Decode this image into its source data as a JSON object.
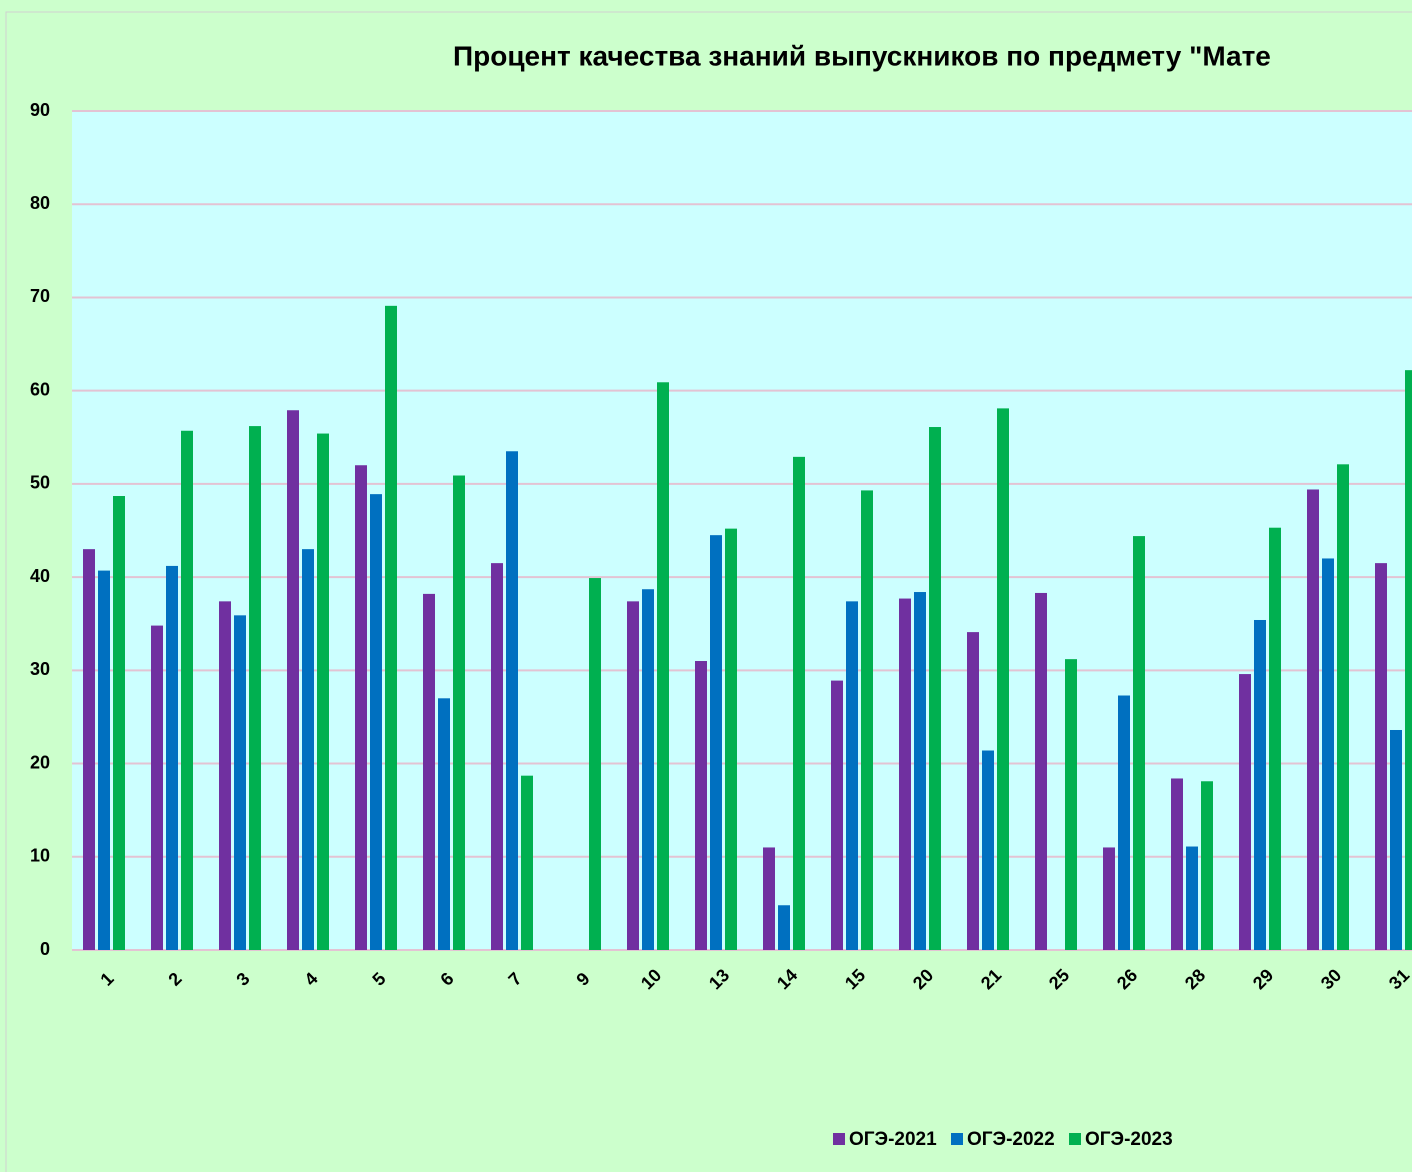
{
  "chart_data": {
    "type": "bar",
    "title": "Процент качества знаний выпускников по предмету  \"Мате",
    "categories": [
      "1",
      "2",
      "3",
      "4",
      "5",
      "6",
      "7",
      "9",
      "10",
      "13",
      "14",
      "15",
      "20",
      "21",
      "25",
      "26",
      "28",
      "29",
      "30",
      "31"
    ],
    "series": [
      {
        "name": "ОГЭ-2021",
        "color": "#7030a0",
        "values": [
          43,
          34.8,
          37.4,
          57.9,
          52,
          38.2,
          41.5,
          null,
          37.4,
          31,
          11,
          28.9,
          37.7,
          34.1,
          38.3,
          11,
          18.4,
          29.6,
          49.4,
          41.5
        ]
      },
      {
        "name": "ОГЭ-2022",
        "color": "#0070c0",
        "values": [
          40.7,
          41.2,
          35.9,
          43,
          48.9,
          27,
          53.5,
          null,
          38.7,
          44.5,
          4.8,
          37.4,
          38.4,
          21.4,
          null,
          27.3,
          11.1,
          35.4,
          42,
          23.6
        ]
      },
      {
        "name": "ОГЭ-2023",
        "color": "#00b050",
        "values": [
          48.7,
          55.7,
          56.2,
          55.4,
          69.1,
          50.9,
          18.7,
          39.9,
          60.9,
          45.2,
          52.9,
          49.3,
          56.1,
          58.1,
          31.2,
          44.4,
          18.1,
          45.3,
          52.1,
          62.2
        ]
      }
    ],
    "ylim": [
      0,
      90
    ],
    "yticks": [
      0,
      10,
      20,
      30,
      40,
      50,
      60,
      70,
      80,
      90
    ],
    "grid": true,
    "legend": "bottom"
  }
}
